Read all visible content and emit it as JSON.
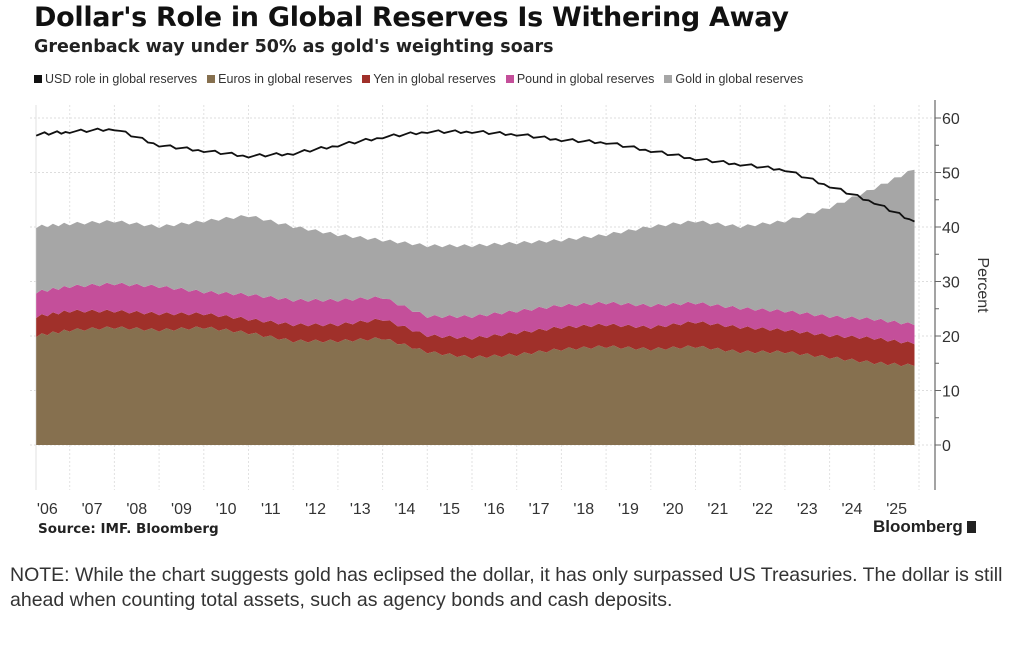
{
  "chart_data": {
    "type": "area",
    "stacked": true,
    "title": "Dollar's Role in Global Reserves Is Withering Away",
    "subtitle": "Greenback way under 50% as gold's weighting soars",
    "ylabel": "Percent",
    "ylim": [
      0,
      60
    ],
    "y_ticks": [
      "0",
      "10",
      "20",
      "30",
      "40",
      "50",
      "60"
    ],
    "x_tick_labels": [
      "'06",
      "'07",
      "'08",
      "'09",
      "'10",
      "'11",
      "'12",
      "'13",
      "'14",
      "'15",
      "'16",
      "'17",
      "'18",
      "'19",
      "'20",
      "'21",
      "'22",
      "'23",
      "'24",
      "'25"
    ],
    "grid": true,
    "legend_position": "top",
    "x": [
      2006.25,
      2007,
      2008,
      2009,
      2010,
      2011,
      2012,
      2013,
      2014,
      2015,
      2016,
      2017,
      2018,
      2019,
      2020,
      2021,
      2022,
      2023,
      2024,
      2025,
      2025.9
    ],
    "line_series": {
      "name": "USD role in global reserves",
      "color": "#111111",
      "values": [
        57,
        57.5,
        58,
        55,
        54,
        53,
        53.5,
        55,
        56.5,
        57.5,
        57.5,
        57,
        56,
        55.5,
        54,
        52.5,
        51.5,
        50.5,
        47.5,
        44.5,
        41
      ]
    },
    "series": [
      {
        "name": "Euros in global reserves",
        "color": "#86704f",
        "values": [
          20,
          21,
          21.5,
          21,
          21.5,
          20.5,
          19,
          19,
          19.5,
          17,
          16,
          16.5,
          17.5,
          18,
          17.5,
          18,
          17,
          17,
          16,
          15,
          14.5
        ]
      },
      {
        "name": "Yen in global reserves",
        "color": "#a0302a",
        "values": [
          3.5,
          3.5,
          3,
          3,
          2.5,
          2.5,
          3,
          3,
          3.5,
          3,
          3.5,
          4,
          4,
          4,
          4,
          4.5,
          4.5,
          4,
          4,
          4.5,
          4
        ]
      },
      {
        "name": "Pound in global reserves",
        "color": "#c44f9a",
        "values": [
          4.5,
          4.5,
          5,
          5,
          4,
          4.5,
          4.5,
          4.5,
          4,
          3.5,
          4,
          4,
          4,
          4,
          4,
          3.5,
          3.5,
          3.5,
          3.5,
          3.5,
          3.5
        ]
      },
      {
        "name": "Gold in global reserves",
        "color": "#a6a6a6",
        "values": [
          12,
          11.5,
          11.5,
          11,
          13,
          14.5,
          13.5,
          12,
          10.5,
          13,
          13,
          12.5,
          12,
          12.5,
          14.5,
          15,
          15,
          16.5,
          20,
          24,
          28.5
        ]
      }
    ],
    "source": "Source: IMF. Bloomberg"
  },
  "brand": "Bloomberg",
  "note": "NOTE: While the chart suggests gold has eclipsed the dollar, it has only surpassed US Treasuries. The dollar is still ahead when counting total assets, such as agency bonds and cash deposits."
}
